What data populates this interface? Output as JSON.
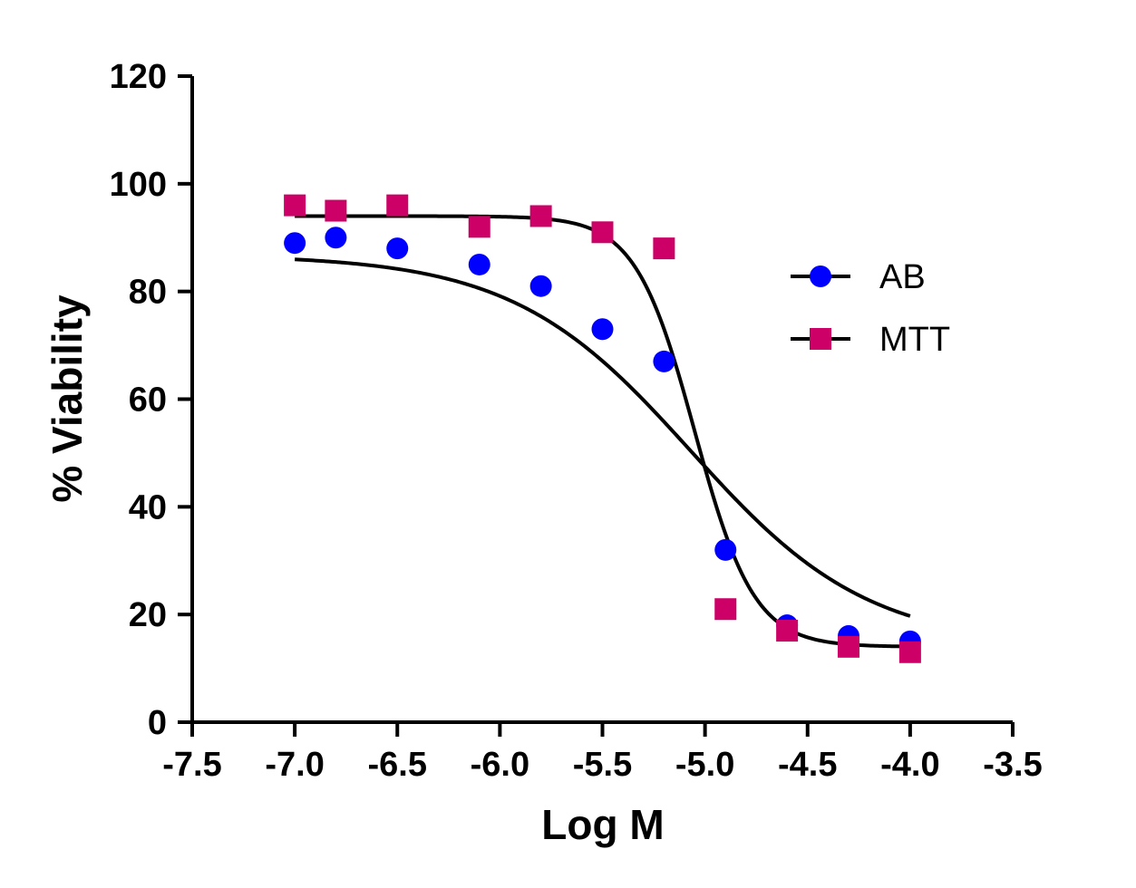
{
  "chart_data": {
    "type": "scatter",
    "xlabel": "Log M",
    "ylabel": "% Viability",
    "xlim": [
      -7.5,
      -3.5
    ],
    "ylim": [
      0,
      120
    ],
    "xticks": [
      -7.5,
      -7.0,
      -6.5,
      -6.0,
      -5.5,
      -5.0,
      -4.5,
      -4.0,
      -3.5
    ],
    "xtick_labels": [
      "-7.5",
      "-7.0",
      "-6.5",
      "-6.0",
      "-5.5",
      "-5.0",
      "-4.5",
      "-4.0",
      "-3.5"
    ],
    "yticks": [
      0,
      20,
      40,
      60,
      80,
      100,
      120
    ],
    "ytick_labels": [
      "0",
      "20",
      "40",
      "60",
      "80",
      "100",
      "120"
    ],
    "grid": false,
    "legend_position": "right",
    "series": [
      {
        "name": "AB",
        "marker": "circle",
        "color": "#0000ff",
        "x": [
          -7.0,
          -6.8,
          -6.5,
          -6.1,
          -5.8,
          -5.5,
          -5.2,
          -4.9,
          -4.6,
          -4.3,
          -4.0
        ],
        "y": [
          89,
          90,
          88,
          85,
          81,
          73,
          67,
          32,
          18,
          16,
          15
        ],
        "fit": {
          "model": "sigmoidal",
          "top": 86.8,
          "bottom": 14,
          "logEC50": -5.07,
          "hill": -1.0
        }
      },
      {
        "name": "MTT",
        "marker": "square",
        "color": "#cc0066",
        "x": [
          -7.0,
          -6.8,
          -6.5,
          -6.1,
          -5.8,
          -5.5,
          -5.2,
          -4.9,
          -4.6,
          -4.3,
          -4.0
        ],
        "y": [
          96,
          95,
          96,
          92,
          94,
          91,
          88,
          21,
          17,
          14,
          13
        ],
        "fit": {
          "model": "sigmoidal",
          "top": 94,
          "bottom": 14,
          "logEC50": -5.05,
          "hill": -3.0
        }
      }
    ],
    "fit_line_color": "#000000"
  }
}
